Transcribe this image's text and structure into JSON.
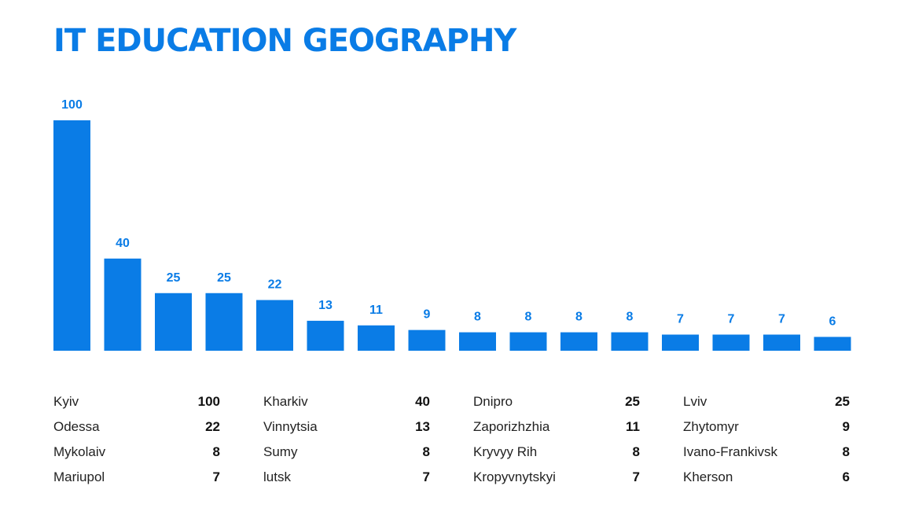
{
  "title": "IT EDUCATION GEOGRAPHY",
  "colors": {
    "accent": "#0a7ce6",
    "text": "#222222"
  },
  "chart_data": {
    "type": "bar",
    "title": "IT EDUCATION GEOGRAPHY",
    "categories": [
      "Kyiv",
      "Kharkiv",
      "Dnipro",
      "Lviv",
      "Odessa",
      "Vinnytsia",
      "Zaporizhzhia",
      "Zhytomyr",
      "Mykolaiv",
      "Sumy",
      "Kryvyy Rih",
      "Ivano-Frankivsk",
      "Mariupol",
      "lutsk",
      "Kropyvnytskyi",
      "Kherson"
    ],
    "values": [
      100,
      40,
      25,
      25,
      22,
      13,
      11,
      9,
      8,
      8,
      8,
      8,
      7,
      7,
      7,
      6
    ],
    "ylim": [
      0,
      100
    ],
    "grid": false,
    "xlabel": "",
    "ylabel": ""
  },
  "legend": [
    {
      "city": "Kyiv",
      "value": "100"
    },
    {
      "city": "Kharkiv",
      "value": "40"
    },
    {
      "city": "Dnipro",
      "value": "25"
    },
    {
      "city": "Lviv",
      "value": "25"
    },
    {
      "city": "Odessa",
      "value": "22"
    },
    {
      "city": "Vinnytsia",
      "value": "13"
    },
    {
      "city": "Zaporizhzhia",
      "value": "11"
    },
    {
      "city": "Zhytomyr",
      "value": "9"
    },
    {
      "city": "Mykolaiv",
      "value": "8"
    },
    {
      "city": "Sumy",
      "value": "8"
    },
    {
      "city": "Kryvyy Rih",
      "value": "8"
    },
    {
      "city": "Ivano-Frankivsk",
      "value": "8"
    },
    {
      "city": "Mariupol",
      "value": "7"
    },
    {
      "city": "lutsk",
      "value": "7"
    },
    {
      "city": "Kropyvnytskyi",
      "value": "7"
    },
    {
      "city": "Kherson",
      "value": "6"
    }
  ]
}
